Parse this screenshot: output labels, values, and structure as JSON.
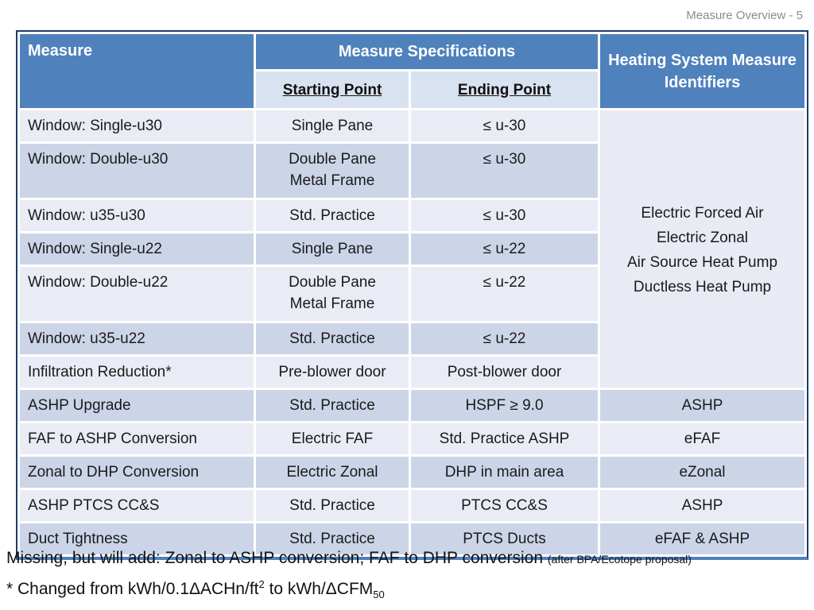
{
  "page_label": "Measure Overview - 5",
  "colors": {
    "header_bg": "#4f81bd",
    "header_text": "#ffffff",
    "subheader_bg": "#d9e2f1",
    "row_light": "#eaecf5",
    "row_dark": "#ccd4e8",
    "merged_cell_bg": "#e9ebf4",
    "outer_border": "#1e3c6b",
    "bottom_border": "#4f81bd",
    "title_color": "#8c8c8c"
  },
  "table": {
    "headers": {
      "measure": "Measure",
      "specifications": "Measure Specifications",
      "identifiers": "Heating System Measure Identifiers",
      "starting_point": "Starting Point",
      "ending_point": "Ending Point"
    },
    "merged_identifier": "Electric Forced Air\nElectric Zonal\nAir Source Heat Pump\nDuctless Heat Pump",
    "rows": [
      {
        "measure": "Window: Single-u30",
        "starting_point": "Single Pane",
        "ending_point": "≤ u-30"
      },
      {
        "measure": "Window: Double-u30",
        "starting_point": "Double Pane\nMetal Frame",
        "ending_point": "≤ u-30"
      },
      {
        "measure": "Window: u35-u30",
        "starting_point": "Std. Practice",
        "ending_point": "≤ u-30"
      },
      {
        "measure": "Window: Single-u22",
        "starting_point": "Single Pane",
        "ending_point": "≤ u-22"
      },
      {
        "measure": "Window: Double-u22",
        "starting_point": "Double Pane\nMetal Frame",
        "ending_point": "≤ u-22"
      },
      {
        "measure": "Window: u35-u22",
        "starting_point": "Std. Practice",
        "ending_point": "≤ u-22"
      },
      {
        "measure": "Infiltration Reduction*",
        "starting_point": "Pre-blower door",
        "ending_point": "Post-blower door"
      },
      {
        "measure": "ASHP Upgrade",
        "starting_point": "Std. Practice",
        "ending_point": "HSPF ≥ 9.0",
        "identifier": "ASHP"
      },
      {
        "measure": "FAF to ASHP Conversion",
        "starting_point": "Electric FAF",
        "ending_point": "Std. Practice ASHP",
        "identifier": "eFAF"
      },
      {
        "measure": "Zonal to DHP Conversion",
        "starting_point": "Electric Zonal",
        "ending_point": "DHP in main area",
        "identifier": "eZonal"
      },
      {
        "measure": "ASHP PTCS CC&S",
        "starting_point": "Std. Practice",
        "ending_point": "PTCS CC&S",
        "identifier": "ASHP"
      },
      {
        "measure": "Duct Tightness",
        "starting_point": "Std. Practice",
        "ending_point": "PTCS Ducts",
        "identifier": "eFAF & ASHP"
      }
    ]
  },
  "footnotes": {
    "line1_main": "Missing, but will add: Zonal to ASHP conversion; FAF to DHP conversion",
    "line1_small": "(after BPA/Ecotope proposal)",
    "line2_pre": "* Changed from kWh/0.1ΔACHn/ft",
    "line2_sup": "2",
    "line2_mid": " to kWh/ΔCFM",
    "line2_sub": "50"
  }
}
